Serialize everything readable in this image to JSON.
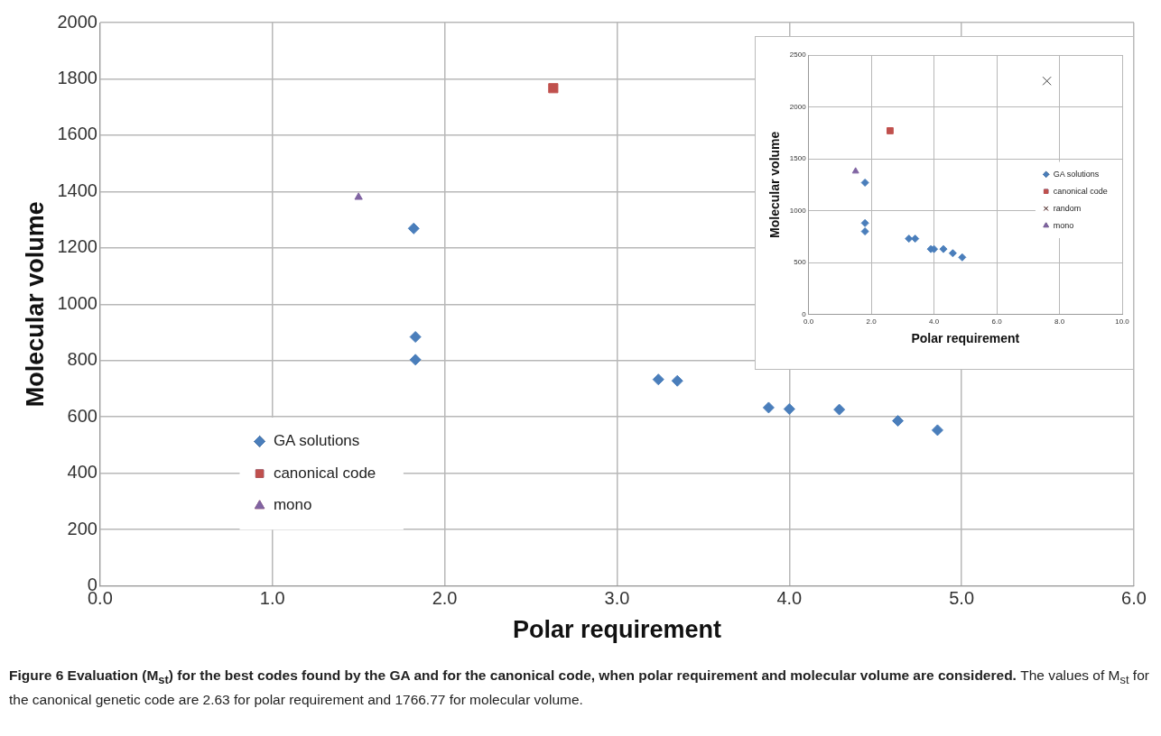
{
  "chart_data": [
    {
      "type": "scatter",
      "xlabel": "Polar requirement",
      "ylabel": "Molecular volume",
      "xlim": [
        0,
        6
      ],
      "xticks": [
        {
          "value": 0,
          "label": "0.0"
        },
        {
          "value": 1,
          "label": "1.0"
        },
        {
          "value": 2,
          "label": "2.0"
        },
        {
          "value": 3,
          "label": "3.0"
        },
        {
          "value": 4,
          "label": "4.0"
        },
        {
          "value": 5,
          "label": "5.0"
        },
        {
          "value": 6,
          "label": "6.0"
        }
      ],
      "ylim": [
        0,
        2000
      ],
      "yticks": [
        0,
        200,
        400,
        600,
        800,
        1000,
        1200,
        1400,
        1600,
        1800,
        2000
      ],
      "grid": true,
      "legend": "bottom left",
      "series": [
        {
          "name": "GA solutions",
          "color": "#4a7ebb",
          "marker": "diamond",
          "x": [
            1.82,
            1.83,
            1.83,
            3.24,
            3.35,
            3.88,
            4.0,
            4.29,
            4.63,
            4.86
          ],
          "values": [
            1269,
            884,
            803,
            733,
            728,
            633,
            628,
            626,
            586,
            553
          ]
        },
        {
          "name": "canonical code",
          "color": "#c0504d",
          "marker": "square",
          "x": [
            2.63
          ],
          "values": [
            1767
          ]
        },
        {
          "name": "mono",
          "color": "#8064a2",
          "marker": "triangle",
          "x": [
            1.5
          ],
          "values": [
            1380
          ]
        }
      ],
      "annotations": [
        "Figure 6 Evaluation (M$_{st}$) for the best codes found by the GA and for the canonical code, when polar requirement and molecular volume are considered.",
        "The values of M$_{st}$ for the canonical genetic code are 2.63 for polar requirement and 1766.77 for molecular volume."
      ]
    },
    {
      "type": "scatter",
      "xlabel": "Polar requirement",
      "ylabel": "Molecular volume",
      "xlim": [
        0,
        10
      ],
      "xticks": [
        {
          "value": 0,
          "label": "0.0"
        },
        {
          "value": 2,
          "label": "2.0"
        },
        {
          "value": 4,
          "label": "4.0"
        },
        {
          "value": 6,
          "label": "6.0"
        },
        {
          "value": 8,
          "label": "8.0"
        },
        {
          "value": 10,
          "label": "10.0"
        }
      ],
      "ylim": [
        0,
        2500
      ],
      "yticks": [
        0,
        500,
        1000,
        1500,
        2000,
        2500
      ],
      "grid": true,
      "legend": "right",
      "series": [
        {
          "name": "GA solutions",
          "color": "#4a7ebb",
          "marker": "diamond",
          "x": [
            1.8,
            1.8,
            1.8,
            3.2,
            3.4,
            3.9,
            4.0,
            4.3,
            4.6,
            4.9
          ],
          "values": [
            1270,
            880,
            800,
            730,
            730,
            630,
            630,
            630,
            590,
            550
          ]
        },
        {
          "name": "canonical code",
          "color": "#c0504d",
          "marker": "square",
          "x": [
            2.6
          ],
          "values": [
            1770
          ]
        },
        {
          "name": "random",
          "color": "#404040",
          "marker": "cross",
          "x": [
            7.6
          ],
          "values": [
            2250
          ]
        },
        {
          "name": "mono",
          "color": "#8064a2",
          "marker": "triangle",
          "x": [
            1.5
          ],
          "values": [
            1380
          ]
        }
      ]
    }
  ]
}
